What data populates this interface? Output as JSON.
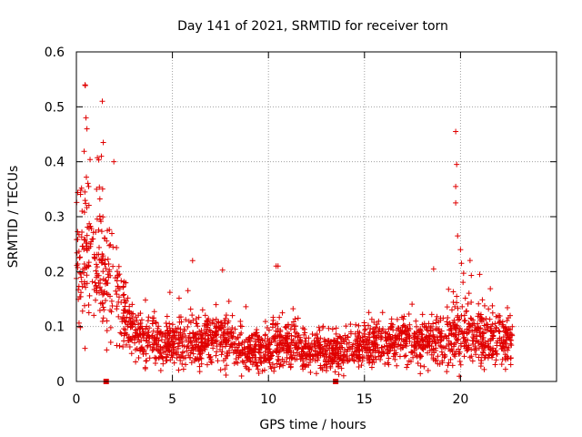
{
  "chart_data": {
    "type": "scatter",
    "title": "Day 141 of 2021, SRMTID for receiver torn",
    "xlabel": "GPS time / hours",
    "ylabel": "SRMTID / TECUs",
    "xlim": [
      0,
      25
    ],
    "ylim": [
      0,
      0.6
    ],
    "xticks": [
      0,
      5,
      10,
      15,
      20
    ],
    "yticks": [
      0,
      0.1,
      0.2,
      0.3,
      0.4,
      0.5,
      0.6
    ],
    "xtick_labels": [
      "0",
      "5",
      "10",
      "15",
      "20"
    ],
    "ytick_labels": [
      "0",
      "0.1",
      "0.2",
      "0.3",
      "0.4",
      "0.5",
      "0.6"
    ],
    "grid": true,
    "marker": "+",
    "series_color": "#e00000",
    "baseline_markers_x": [
      1.55,
      13.5
    ],
    "highlight_points": [
      {
        "x": 0.45,
        "y": 0.54
      },
      {
        "x": 1.35,
        "y": 0.51
      },
      {
        "x": 0.5,
        "y": 0.48
      },
      {
        "x": 0.55,
        "y": 0.46
      },
      {
        "x": 1.4,
        "y": 0.435
      },
      {
        "x": 1.3,
        "y": 0.41
      },
      {
        "x": 1.95,
        "y": 0.4
      },
      {
        "x": 19.75,
        "y": 0.455
      },
      {
        "x": 19.8,
        "y": 0.395
      },
      {
        "x": 19.75,
        "y": 0.355
      },
      {
        "x": 19.75,
        "y": 0.325
      },
      {
        "x": 19.85,
        "y": 0.265
      },
      {
        "x": 20.0,
        "y": 0.24
      },
      {
        "x": 20.05,
        "y": 0.215
      },
      {
        "x": 6.05,
        "y": 0.22
      },
      {
        "x": 10.4,
        "y": 0.21
      },
      {
        "x": 10.5,
        "y": 0.21
      },
      {
        "x": 18.6,
        "y": 0.205
      },
      {
        "x": 21.0,
        "y": 0.195
      },
      {
        "x": 8.6,
        "y": 0.01
      },
      {
        "x": 9.5,
        "y": 0.015
      }
    ],
    "envelope": {
      "x": [
        0,
        0.5,
        1,
        1.5,
        2,
        2.5,
        3,
        3.5,
        4,
        5,
        6,
        7,
        8,
        9,
        10,
        10.5,
        11,
        12,
        13,
        14,
        15,
        16,
        17,
        18,
        18.5,
        19,
        19.5,
        20,
        20.5,
        21,
        22,
        22.7
      ],
      "y": [
        0.23,
        0.24,
        0.22,
        0.19,
        0.16,
        0.12,
        0.09,
        0.08,
        0.072,
        0.07,
        0.07,
        0.08,
        0.07,
        0.06,
        0.058,
        0.075,
        0.065,
        0.055,
        0.05,
        0.058,
        0.065,
        0.07,
        0.075,
        0.065,
        0.075,
        0.08,
        0.085,
        0.1,
        0.085,
        0.08,
        0.075,
        0.072
      ],
      "spread": [
        0.11,
        0.11,
        0.1,
        0.09,
        0.08,
        0.06,
        0.045,
        0.04,
        0.038,
        0.035,
        0.035,
        0.04,
        0.035,
        0.03,
        0.03,
        0.04,
        0.032,
        0.03,
        0.028,
        0.03,
        0.03,
        0.032,
        0.035,
        0.035,
        0.04,
        0.045,
        0.05,
        0.055,
        0.05,
        0.045,
        0.04,
        0.035
      ]
    },
    "generated_point_count": 2200
  }
}
